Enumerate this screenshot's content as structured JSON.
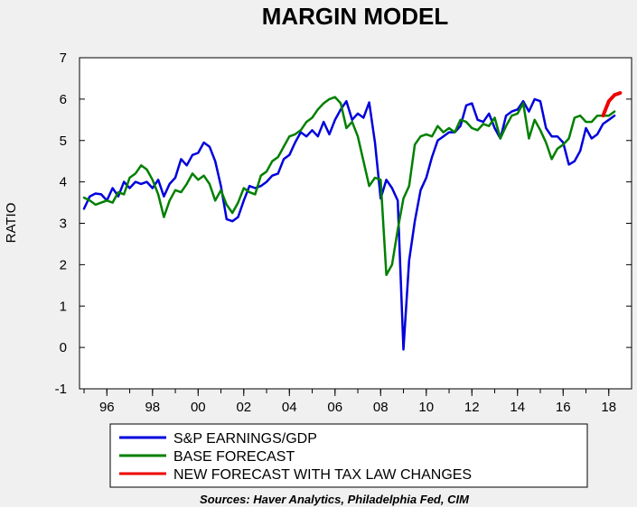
{
  "chart_data": {
    "type": "line",
    "title": "MARGIN MODEL",
    "ylabel": "RATIO",
    "xlabel": "",
    "ylim": [
      -1,
      7
    ],
    "xlim": [
      1994.8,
      2019.0
    ],
    "y_ticks": [
      "-1",
      "0",
      "1",
      "2",
      "3",
      "4",
      "5",
      "6",
      "7"
    ],
    "x_tick_labels": [
      "96",
      "98",
      "00",
      "02",
      "04",
      "06",
      "08",
      "10",
      "12",
      "14",
      "16",
      "18"
    ],
    "x_tick_years": [
      1996,
      1998,
      2000,
      2002,
      2004,
      2006,
      2008,
      2010,
      2012,
      2014,
      2016,
      2018
    ],
    "grid": "none",
    "legend_placement": "bottom",
    "source": "Sources:  Haver Analytics, Philadelphia Fed, CIM",
    "series": [
      {
        "name": "S&P EARNINGS/GDP",
        "color": "#0000dd",
        "points": [
          [
            1995.0,
            3.35
          ],
          [
            1995.25,
            3.65
          ],
          [
            1995.5,
            3.72
          ],
          [
            1995.75,
            3.7
          ],
          [
            1996.0,
            3.55
          ],
          [
            1996.25,
            3.85
          ],
          [
            1996.5,
            3.65
          ],
          [
            1996.75,
            4.0
          ],
          [
            1997.0,
            3.85
          ],
          [
            1997.25,
            4.0
          ],
          [
            1997.5,
            3.95
          ],
          [
            1997.75,
            4.0
          ],
          [
            1998.0,
            3.85
          ],
          [
            1998.25,
            4.05
          ],
          [
            1998.5,
            3.65
          ],
          [
            1998.75,
            3.95
          ],
          [
            1999.0,
            4.1
          ],
          [
            1999.25,
            4.55
          ],
          [
            1999.5,
            4.4
          ],
          [
            1999.75,
            4.65
          ],
          [
            2000.0,
            4.7
          ],
          [
            2000.25,
            4.95
          ],
          [
            2000.5,
            4.85
          ],
          [
            2000.75,
            4.5
          ],
          [
            2001.0,
            3.9
          ],
          [
            2001.25,
            3.1
          ],
          [
            2001.5,
            3.05
          ],
          [
            2001.75,
            3.15
          ],
          [
            2002.0,
            3.55
          ],
          [
            2002.25,
            3.9
          ],
          [
            2002.5,
            3.85
          ],
          [
            2002.75,
            3.9
          ],
          [
            2003.0,
            4.0
          ],
          [
            2003.25,
            4.15
          ],
          [
            2003.5,
            4.2
          ],
          [
            2003.75,
            4.55
          ],
          [
            2004.0,
            4.65
          ],
          [
            2004.25,
            4.95
          ],
          [
            2004.5,
            5.2
          ],
          [
            2004.75,
            5.1
          ],
          [
            2005.0,
            5.25
          ],
          [
            2005.25,
            5.1
          ],
          [
            2005.5,
            5.45
          ],
          [
            2005.75,
            5.15
          ],
          [
            2006.0,
            5.5
          ],
          [
            2006.25,
            5.75
          ],
          [
            2006.5,
            5.95
          ],
          [
            2006.75,
            5.5
          ],
          [
            2007.0,
            5.65
          ],
          [
            2007.25,
            5.55
          ],
          [
            2007.5,
            5.92
          ],
          [
            2007.75,
            4.95
          ],
          [
            2008.0,
            3.6
          ],
          [
            2008.25,
            4.05
          ],
          [
            2008.5,
            3.85
          ],
          [
            2008.75,
            3.55
          ],
          [
            2009.0,
            -0.05
          ],
          [
            2009.25,
            2.1
          ],
          [
            2009.5,
            3.05
          ],
          [
            2009.75,
            3.8
          ],
          [
            2010.0,
            4.1
          ],
          [
            2010.25,
            4.6
          ],
          [
            2010.5,
            5.0
          ],
          [
            2010.75,
            5.1
          ],
          [
            2011.0,
            5.2
          ],
          [
            2011.25,
            5.2
          ],
          [
            2011.5,
            5.35
          ],
          [
            2011.75,
            5.85
          ],
          [
            2012.0,
            5.9
          ],
          [
            2012.25,
            5.5
          ],
          [
            2012.5,
            5.45
          ],
          [
            2012.75,
            5.65
          ],
          [
            2013.0,
            5.3
          ],
          [
            2013.25,
            5.05
          ],
          [
            2013.5,
            5.6
          ],
          [
            2013.75,
            5.7
          ],
          [
            2014.0,
            5.75
          ],
          [
            2014.25,
            5.95
          ],
          [
            2014.5,
            5.7
          ],
          [
            2014.75,
            6.0
          ],
          [
            2015.0,
            5.95
          ],
          [
            2015.25,
            5.3
          ],
          [
            2015.5,
            5.1
          ],
          [
            2015.75,
            5.1
          ],
          [
            2016.0,
            4.95
          ],
          [
            2016.25,
            4.42
          ],
          [
            2016.5,
            4.5
          ],
          [
            2016.75,
            4.75
          ],
          [
            2017.0,
            5.3
          ],
          [
            2017.25,
            5.05
          ],
          [
            2017.5,
            5.15
          ],
          [
            2017.75,
            5.4
          ],
          [
            2018.0,
            5.5
          ],
          [
            2018.25,
            5.6
          ]
        ]
      },
      {
        "name": "BASE FORECAST",
        "color": "#008000",
        "points": [
          [
            1995.0,
            3.62
          ],
          [
            1995.25,
            3.55
          ],
          [
            1995.5,
            3.45
          ],
          [
            1995.75,
            3.5
          ],
          [
            1996.0,
            3.55
          ],
          [
            1996.25,
            3.5
          ],
          [
            1996.5,
            3.75
          ],
          [
            1996.75,
            3.7
          ],
          [
            1997.0,
            4.1
          ],
          [
            1997.25,
            4.2
          ],
          [
            1997.5,
            4.4
          ],
          [
            1997.75,
            4.3
          ],
          [
            1998.0,
            4.05
          ],
          [
            1998.25,
            3.7
          ],
          [
            1998.5,
            3.15
          ],
          [
            1998.75,
            3.55
          ],
          [
            1999.0,
            3.8
          ],
          [
            1999.25,
            3.75
          ],
          [
            1999.5,
            3.95
          ],
          [
            1999.75,
            4.2
          ],
          [
            2000.0,
            4.05
          ],
          [
            2000.25,
            4.15
          ],
          [
            2000.5,
            3.95
          ],
          [
            2000.75,
            3.55
          ],
          [
            2001.0,
            3.8
          ],
          [
            2001.25,
            3.45
          ],
          [
            2001.5,
            3.25
          ],
          [
            2001.75,
            3.5
          ],
          [
            2002.0,
            3.85
          ],
          [
            2002.25,
            3.75
          ],
          [
            2002.5,
            3.7
          ],
          [
            2002.75,
            4.15
          ],
          [
            2003.0,
            4.25
          ],
          [
            2003.25,
            4.5
          ],
          [
            2003.5,
            4.6
          ],
          [
            2003.75,
            4.85
          ],
          [
            2004.0,
            5.1
          ],
          [
            2004.25,
            5.15
          ],
          [
            2004.5,
            5.25
          ],
          [
            2004.75,
            5.45
          ],
          [
            2005.0,
            5.55
          ],
          [
            2005.25,
            5.75
          ],
          [
            2005.5,
            5.9
          ],
          [
            2005.75,
            6.0
          ],
          [
            2006.0,
            6.05
          ],
          [
            2006.25,
            5.9
          ],
          [
            2006.5,
            5.3
          ],
          [
            2006.75,
            5.45
          ],
          [
            2007.0,
            5.1
          ],
          [
            2007.25,
            4.5
          ],
          [
            2007.5,
            3.9
          ],
          [
            2007.75,
            4.1
          ],
          [
            2008.0,
            4.05
          ],
          [
            2008.25,
            1.75
          ],
          [
            2008.5,
            2.0
          ],
          [
            2008.75,
            2.85
          ],
          [
            2009.0,
            3.6
          ],
          [
            2009.25,
            3.9
          ],
          [
            2009.5,
            4.9
          ],
          [
            2009.75,
            5.1
          ],
          [
            2010.0,
            5.15
          ],
          [
            2010.25,
            5.1
          ],
          [
            2010.5,
            5.35
          ],
          [
            2010.75,
            5.2
          ],
          [
            2011.0,
            5.3
          ],
          [
            2011.25,
            5.2
          ],
          [
            2011.5,
            5.5
          ],
          [
            2011.75,
            5.45
          ],
          [
            2012.0,
            5.3
          ],
          [
            2012.25,
            5.25
          ],
          [
            2012.5,
            5.4
          ],
          [
            2012.75,
            5.35
          ],
          [
            2013.0,
            5.55
          ],
          [
            2013.25,
            5.05
          ],
          [
            2013.5,
            5.35
          ],
          [
            2013.75,
            5.6
          ],
          [
            2014.0,
            5.65
          ],
          [
            2014.25,
            5.9
          ],
          [
            2014.5,
            5.05
          ],
          [
            2014.75,
            5.5
          ],
          [
            2015.0,
            5.25
          ],
          [
            2015.25,
            4.95
          ],
          [
            2015.5,
            4.55
          ],
          [
            2015.75,
            4.8
          ],
          [
            2016.0,
            4.9
          ],
          [
            2016.25,
            5.05
          ],
          [
            2016.5,
            5.55
          ],
          [
            2016.75,
            5.6
          ],
          [
            2017.0,
            5.45
          ],
          [
            2017.25,
            5.45
          ],
          [
            2017.5,
            5.6
          ],
          [
            2017.75,
            5.6
          ],
          [
            2018.0,
            5.6
          ],
          [
            2018.25,
            5.7
          ]
        ]
      },
      {
        "name": "NEW FORECAST WITH TAX LAW CHANGES",
        "color": "#ee0000",
        "points": [
          [
            2017.75,
            5.6
          ],
          [
            2018.0,
            5.95
          ],
          [
            2018.25,
            6.1
          ],
          [
            2018.5,
            6.15
          ]
        ]
      }
    ]
  }
}
